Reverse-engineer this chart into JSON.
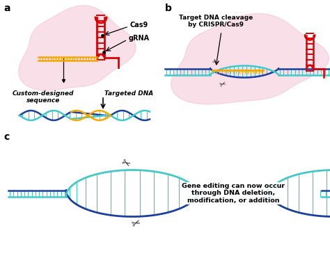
{
  "panel_a_label": "a",
  "panel_b_label": "b",
  "panel_c_label": "c",
  "cas9_label": "Cas9",
  "grna_label": "gRNA",
  "custom_seq_label": "Custom-designed\nsequence",
  "targeted_dna_label": "Targeted DNA",
  "cleavage_label": "Target DNA cleavage\nby CRISPR/Cas9",
  "gene_editing_label": "Gene editing can now occur\nthrough DNA deletion,\nmodification, or addition",
  "bg_color": "#ffffff",
  "blob_color": "#f2b8ce",
  "dna_blue": "#1c3f9e",
  "dna_teal": "#44c8c8",
  "dna_orange": "#f5a800",
  "dna_red": "#dd0000",
  "text_color": "#000000"
}
